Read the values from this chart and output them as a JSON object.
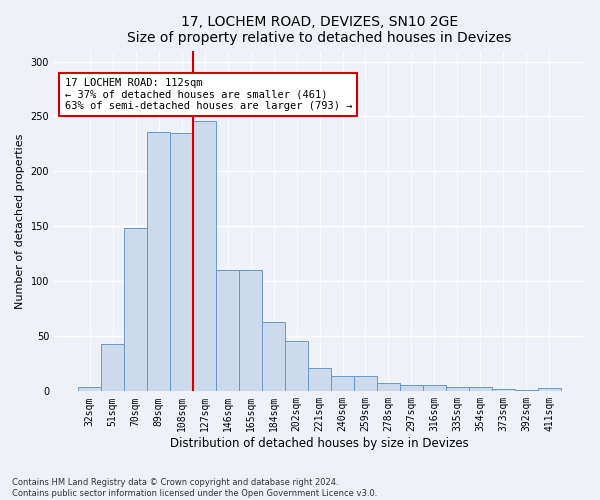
{
  "title": "17, LOCHEM ROAD, DEVIZES, SN10 2GE",
  "subtitle": "Size of property relative to detached houses in Devizes",
  "xlabel": "Distribution of detached houses by size in Devizes",
  "ylabel": "Number of detached properties",
  "categories": [
    "32sqm",
    "51sqm",
    "70sqm",
    "89sqm",
    "108sqm",
    "127sqm",
    "146sqm",
    "165sqm",
    "184sqm",
    "202sqm",
    "221sqm",
    "240sqm",
    "259sqm",
    "278sqm",
    "297sqm",
    "316sqm",
    "335sqm",
    "354sqm",
    "373sqm",
    "392sqm",
    "411sqm"
  ],
  "values": [
    4,
    43,
    149,
    236,
    235,
    246,
    110,
    110,
    63,
    46,
    21,
    14,
    14,
    8,
    6,
    6,
    4,
    4,
    2,
    1,
    3
  ],
  "bar_color": "#ccdaeb",
  "bar_edge_color": "#6699cc",
  "vline_x": 4.5,
  "vline_color": "#cc0000",
  "annotation_text": "17 LOCHEM ROAD: 112sqm\n← 37% of detached houses are smaller (461)\n63% of semi-detached houses are larger (793) →",
  "annotation_box_facecolor": "white",
  "annotation_box_edgecolor": "#cc0000",
  "ylim": [
    0,
    310
  ],
  "yticks": [
    0,
    50,
    100,
    150,
    200,
    250,
    300
  ],
  "title_fontsize": 10,
  "xlabel_fontsize": 8.5,
  "ylabel_fontsize": 8,
  "tick_fontsize": 7,
  "annot_fontsize": 7.5,
  "footer_text": "Contains HM Land Registry data © Crown copyright and database right 2024.\nContains public sector information licensed under the Open Government Licence v3.0.",
  "background_color": "#eef2f8",
  "grid_color": "white"
}
